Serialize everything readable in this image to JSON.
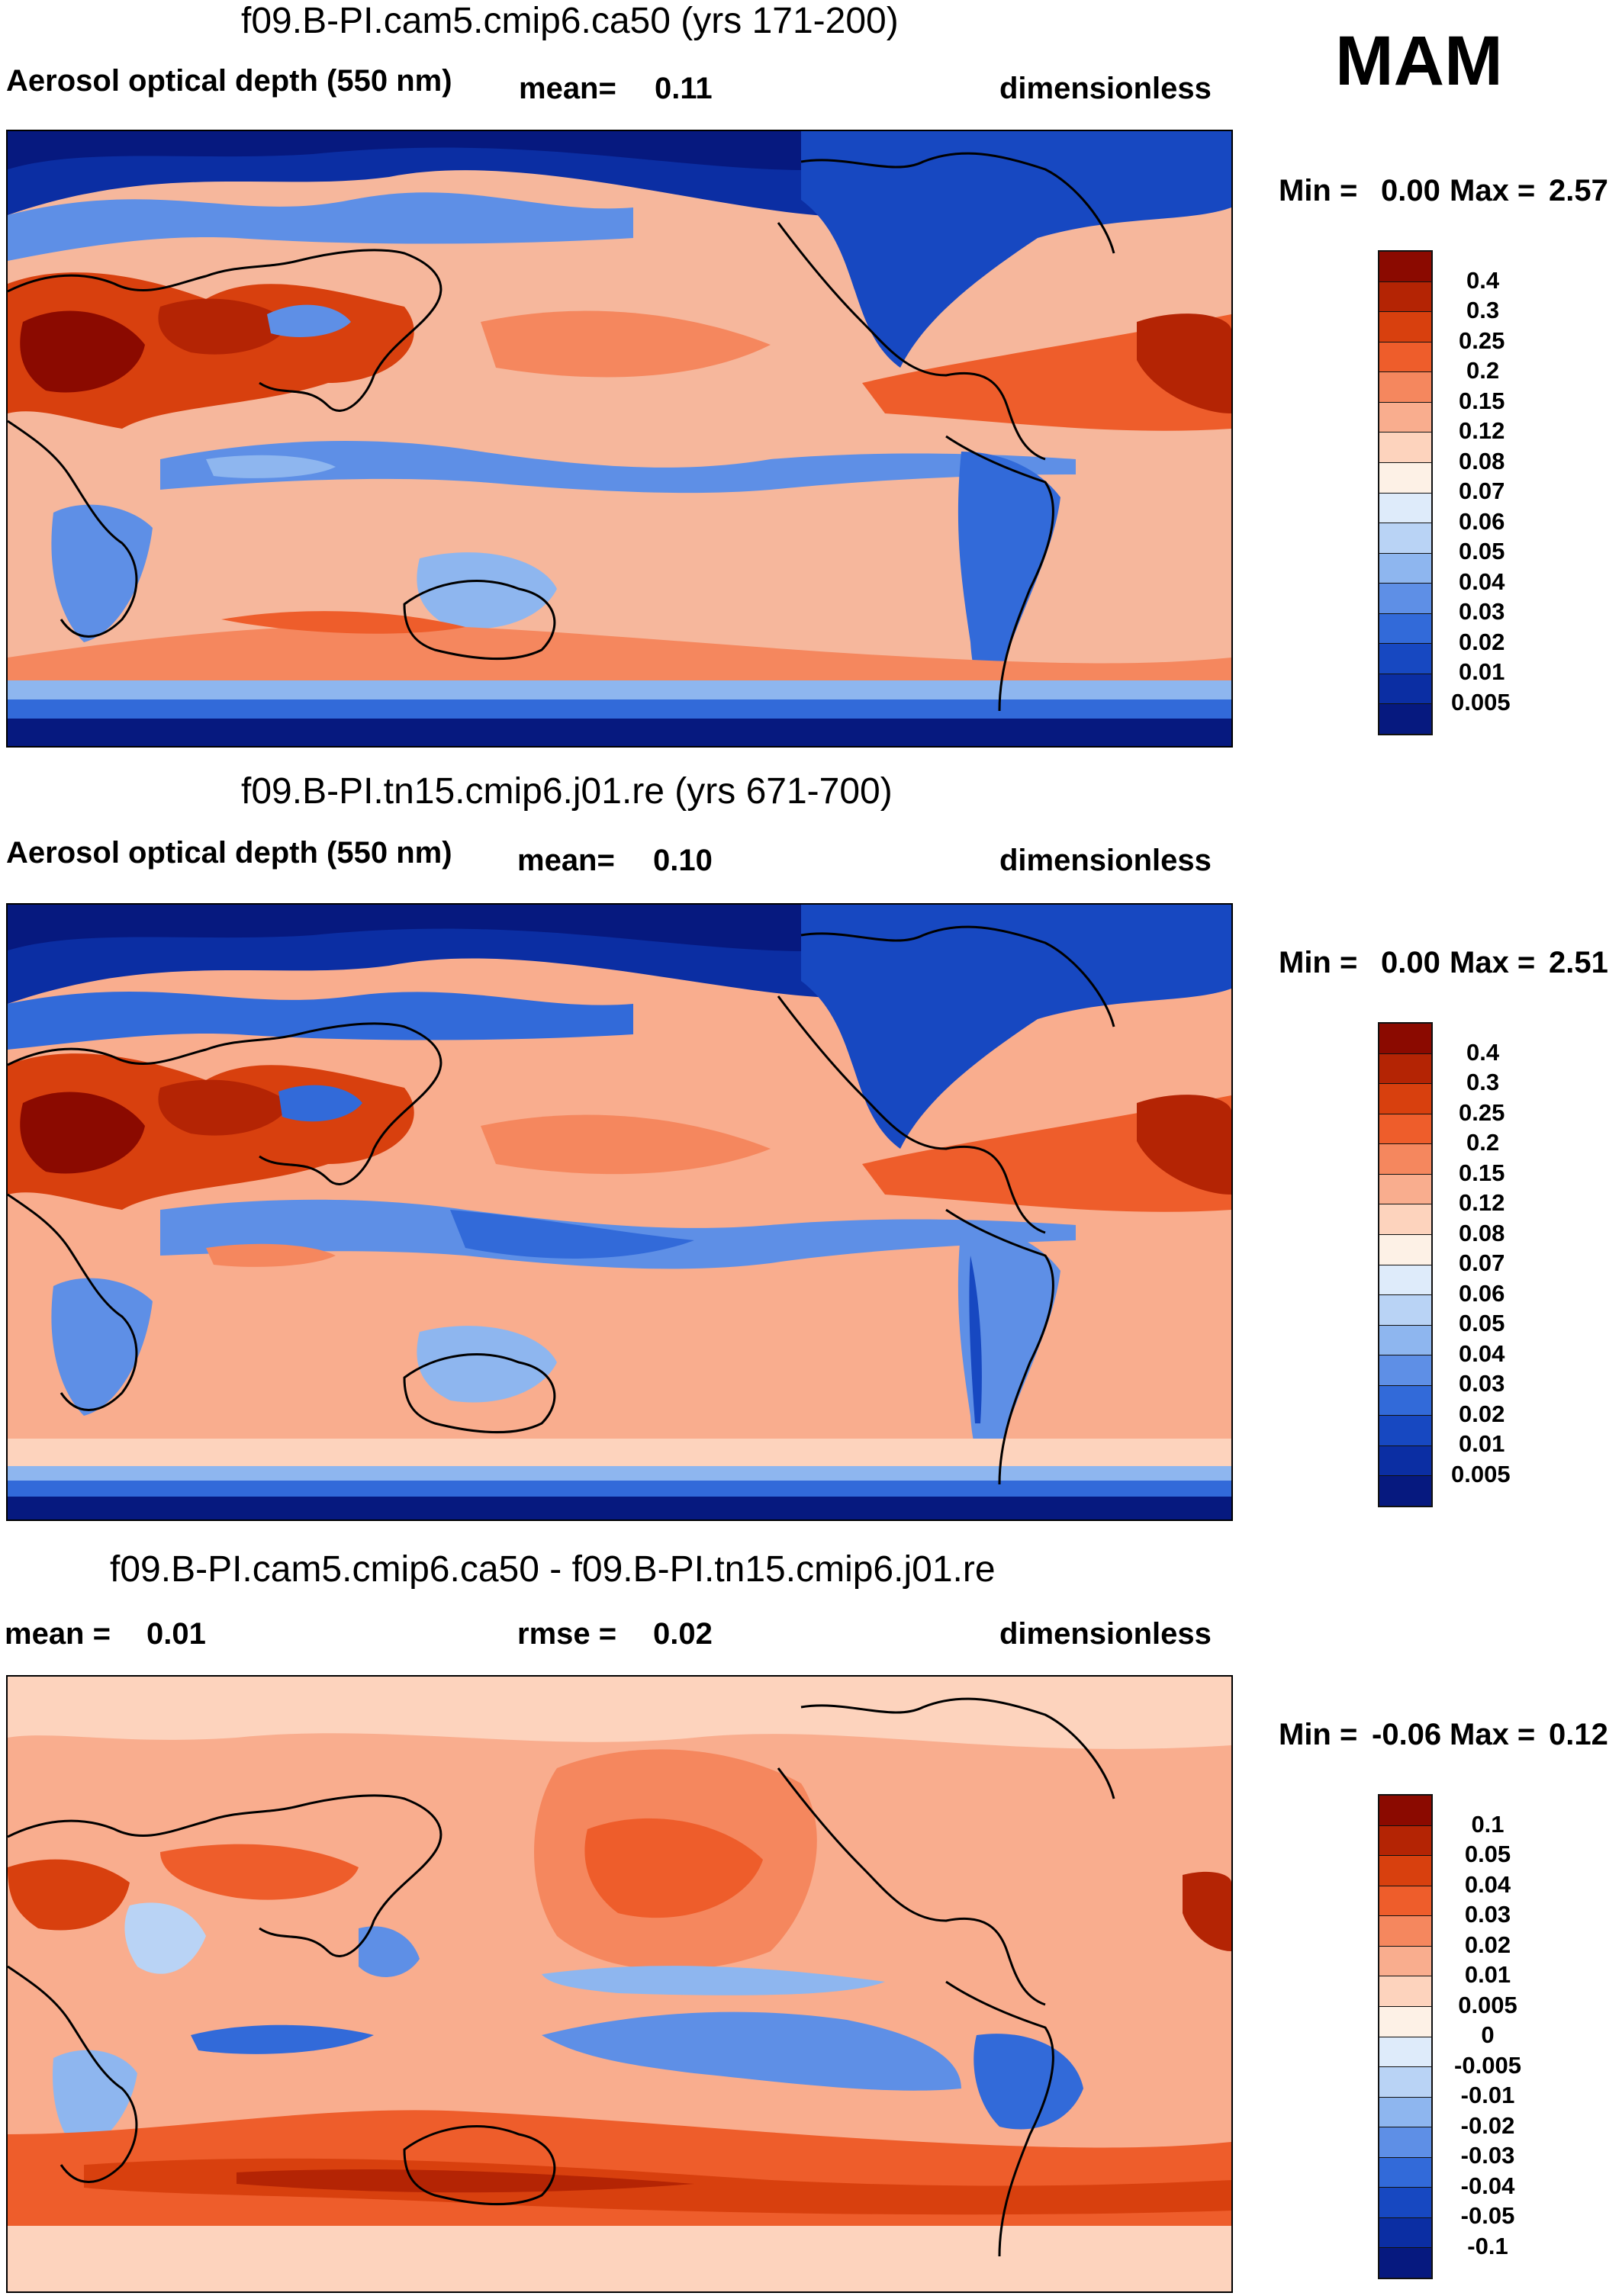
{
  "season": "MAM",
  "panels": [
    {
      "title": "f09.B-PI.cam5.cmip6.ca50 (yrs 171-200)",
      "left_label": "Aerosol optical depth (550 nm)",
      "center_label": "mean=",
      "center_value": "0.11",
      "units": "dimensionless",
      "min_label": "Min =",
      "min_value": "0.00",
      "max_label": "Max =",
      "max_value": "2.57",
      "levels": [
        "0.4",
        "0.3",
        "0.25",
        "0.2",
        "0.15",
        "0.12",
        "0.08",
        "0.07",
        "0.06",
        "0.05",
        "0.04",
        "0.03",
        "0.02",
        "0.01",
        "0.005"
      ],
      "colors": [
        "#8b0a00",
        "#b42404",
        "#d8400e",
        "#ee5d2b",
        "#f5875e",
        "#f9ad8e",
        "#fdd3bd",
        "#fdf1e6",
        "#deebfa",
        "#b9d3f5",
        "#8eb6ef",
        "#5e8fe6",
        "#326ad9",
        "#1748c1",
        "#0b2ea3",
        "#06197f"
      ]
    },
    {
      "title": "f09.B-PI.tn15.cmip6.j01.re (yrs 671-700)",
      "left_label": "Aerosol optical depth (550 nm)",
      "center_label": "mean=",
      "center_value": "0.10",
      "units": "dimensionless",
      "min_label": "Min =",
      "min_value": "0.00",
      "max_label": "Max =",
      "max_value": "2.51",
      "levels": [
        "0.4",
        "0.3",
        "0.25",
        "0.2",
        "0.15",
        "0.12",
        "0.08",
        "0.07",
        "0.06",
        "0.05",
        "0.04",
        "0.03",
        "0.02",
        "0.01",
        "0.005"
      ],
      "colors": [
        "#8b0a00",
        "#b42404",
        "#d8400e",
        "#ee5d2b",
        "#f5875e",
        "#f9ad8e",
        "#fdd3bd",
        "#fdf1e6",
        "#deebfa",
        "#b9d3f5",
        "#8eb6ef",
        "#5e8fe6",
        "#326ad9",
        "#1748c1",
        "#0b2ea3",
        "#06197f"
      ]
    },
    {
      "title": "f09.B-PI.cam5.cmip6.ca50 - f09.B-PI.tn15.cmip6.j01.re",
      "left_label": "mean =",
      "left_value": "0.01",
      "center_label": "rmse =",
      "center_value": "0.02",
      "units": "dimensionless",
      "min_label": "Min =",
      "min_value": "-0.06",
      "max_label": "Max =",
      "max_value": "0.12",
      "levels": [
        "0.1",
        "0.05",
        "0.04",
        "0.03",
        "0.02",
        "0.01",
        "0.005",
        "0",
        "-0.005",
        "-0.01",
        "-0.02",
        "-0.03",
        "-0.04",
        "-0.05",
        "-0.1"
      ],
      "colors": [
        "#8b0a00",
        "#b42404",
        "#d8400e",
        "#ee5d2b",
        "#f5875e",
        "#f9ad8e",
        "#fdd3bd",
        "#fdf1e6",
        "#deebfa",
        "#b9d3f5",
        "#8eb6ef",
        "#5e8fe6",
        "#326ad9",
        "#1748c1",
        "#0b2ea3",
        "#06197f"
      ]
    }
  ]
}
